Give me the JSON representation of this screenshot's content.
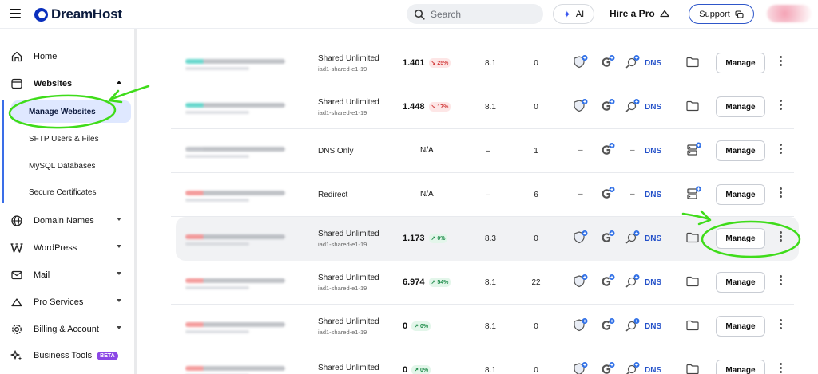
{
  "header": {
    "brand": "DreamHost",
    "search_placeholder": "Search",
    "ai_label": "AI",
    "hire_label": "Hire a Pro",
    "support_label": "Support"
  },
  "sidebar": {
    "items": [
      {
        "label": "Home",
        "icon": "home-icon"
      },
      {
        "label": "Websites",
        "icon": "browser-window-icon",
        "expanded": true
      },
      {
        "label": "Domain Names",
        "icon": "globe-icon"
      },
      {
        "label": "WordPress",
        "icon": "wordpress-icon"
      },
      {
        "label": "Mail",
        "icon": "mail-icon"
      },
      {
        "label": "Pro Services",
        "icon": "cloud-icon"
      },
      {
        "label": "Billing & Account",
        "icon": "gear-icon"
      },
      {
        "label": "Business Tools",
        "icon": "sparkles-icon",
        "badge": "BETA"
      }
    ],
    "website_subitems": [
      {
        "label": "Manage Websites",
        "active": true
      },
      {
        "label": "SFTP Users & Files"
      },
      {
        "label": "MySQL Databases"
      },
      {
        "label": "Secure Certificates"
      }
    ]
  },
  "sites": [
    {
      "domain_color": "#4fd1c5",
      "plan": "Shared Unlimited",
      "server": "iad1-shared-e1-19",
      "speed": "1.401",
      "change": "25%",
      "trend": "down",
      "score": "8.1",
      "count": "0",
      "type": "hosted"
    },
    {
      "domain_color": "#4fd1c5",
      "plan": "Shared Unlimited",
      "server": "iad1-shared-e1-19",
      "speed": "1.448",
      "change": "17%",
      "trend": "down",
      "score": "8.1",
      "count": "0",
      "type": "hosted"
    },
    {
      "domain_color": "#b9bcc2",
      "plan": "DNS Only",
      "server": "",
      "speed": "N/A",
      "change": "",
      "trend": "",
      "score": "–",
      "count": "1",
      "type": "dns"
    },
    {
      "domain_color": "#f28b8b",
      "plan": "Redirect",
      "server": "",
      "speed": "N/A",
      "change": "",
      "trend": "",
      "score": "–",
      "count": "6",
      "type": "dns"
    },
    {
      "domain_color": "#f28b8b",
      "plan": "Shared Unlimited",
      "server": "iad1-shared-e1-19",
      "speed": "1.173",
      "change": "0%",
      "trend": "up",
      "score": "8.3",
      "count": "0",
      "type": "hosted",
      "highlight": true
    },
    {
      "domain_color": "#f28b8b",
      "plan": "Shared Unlimited",
      "server": "iad1-shared-e1-19",
      "speed": "6.974",
      "change": "54%",
      "trend": "up",
      "score": "8.1",
      "count": "22",
      "type": "hosted"
    },
    {
      "domain_color": "#f28b8b",
      "plan": "Shared Unlimited",
      "server": "iad1-shared-e1-19",
      "speed": "0",
      "change": "0%",
      "trend": "up",
      "score": "8.1",
      "count": "0",
      "type": "hosted"
    },
    {
      "domain_color": "#f28b8b",
      "plan": "Shared Unlimited",
      "server": "",
      "speed": "0",
      "change": "0%",
      "trend": "up",
      "score": "8.1",
      "count": "0",
      "type": "hosted"
    }
  ],
  "labels": {
    "dns": "DNS",
    "manage": "Manage",
    "dash": "–"
  },
  "colors": {
    "accent": "#2451c9",
    "annotation": "#3fdc1a",
    "active_bg": "#dfe8ff"
  }
}
